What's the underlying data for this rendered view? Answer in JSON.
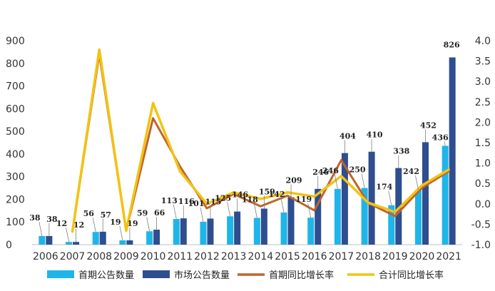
{
  "chart_data": {
    "type": "bar",
    "categories": [
      "2006",
      "2007",
      "2008",
      "2009",
      "2010",
      "2011",
      "2012",
      "2013",
      "2014",
      "2015",
      "2016",
      "2017",
      "2018",
      "2019",
      "2020",
      "2021"
    ],
    "series": [
      {
        "name": "首期公告数量",
        "type": "bar",
        "axis": "left",
        "color": "#1fb5e8",
        "values": [
          38,
          12,
          56,
          19,
          59,
          113,
          101,
          125,
          118,
          142,
          119,
          246,
          250,
          174,
          242,
          436
        ],
        "labels": [
          "38",
          "12",
          "56",
          "19",
          "59",
          "113",
          "101",
          "125",
          "118",
          "142",
          "119",
          "246",
          "250",
          "174",
          "242",
          "436"
        ]
      },
      {
        "name": "市场公告数量",
        "type": "bar",
        "axis": "left",
        "color": "#2e4e8f",
        "values": [
          38,
          12,
          57,
          19,
          66,
          116,
          115,
          146,
          159,
          209,
          246,
          404,
          410,
          338,
          452,
          826
        ],
        "labels": [
          "38",
          "12",
          "57",
          "19",
          "66",
          "116",
          "115",
          "146",
          "159",
          "209",
          "246",
          "404",
          "410",
          "338",
          "452",
          "826"
        ]
      },
      {
        "name": "首期同比增长率",
        "type": "line",
        "axis": "right",
        "color": "#c0642a",
        "values": [
          null,
          -0.68,
          3.67,
          -0.66,
          2.1,
          0.92,
          -0.11,
          0.24,
          -0.06,
          0.2,
          -0.16,
          1.07,
          0.02,
          -0.3,
          0.39,
          0.8
        ]
      },
      {
        "name": "合计同比增长率",
        "type": "line",
        "axis": "right",
        "color": "#f2c314",
        "values": [
          null,
          -0.68,
          3.78,
          -0.66,
          2.47,
          0.8,
          0.0,
          0.28,
          0.12,
          0.28,
          0.18,
          0.68,
          0.03,
          -0.2,
          0.45,
          0.84
        ]
      }
    ],
    "left_axis": {
      "range": [
        0,
        900
      ],
      "ticks": [
        "0",
        "100",
        "200",
        "300",
        "400",
        "500",
        "600",
        "700",
        "800",
        "900"
      ]
    },
    "right_axis": {
      "range": [
        -1.0,
        4.0
      ],
      "ticks": [
        "-1.0",
        "-0.5",
        "0.0",
        "0.5",
        "1.0",
        "1.5",
        "2.0",
        "2.5",
        "3.0",
        "3.5",
        "4.0"
      ]
    },
    "legend": {
      "position": "bottom",
      "items": [
        "首期公告数量",
        "市场公告数量",
        "首期同比增长率",
        "合计同比增长率"
      ]
    },
    "grid": false
  }
}
